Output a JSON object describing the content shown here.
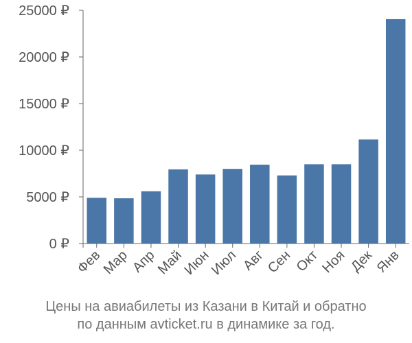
{
  "chart_data": {
    "type": "bar",
    "categories": [
      "Фев",
      "Мар",
      "Апр",
      "Май",
      "Июн",
      "Июл",
      "Авг",
      "Сен",
      "Окт",
      "Ноя",
      "Дек",
      "Янв"
    ],
    "values": [
      4900,
      4850,
      5600,
      7950,
      7400,
      8000,
      8450,
      7300,
      8500,
      8500,
      11150,
      24050
    ],
    "ylim": [
      0,
      25000
    ],
    "yticks": [
      0,
      5000,
      10000,
      15000,
      20000,
      25000
    ],
    "ytick_labels": [
      "0 ₽",
      "5000 ₽",
      "10000 ₽",
      "15000 ₽",
      "20000 ₽",
      "25000 ₽"
    ],
    "grid": false,
    "bar_color": "#4a76a8",
    "caption_line1": "Цены на авиабилеты из Казани в Китай и обратно",
    "caption_line2": "по данным avticket.ru в динамике за год."
  }
}
